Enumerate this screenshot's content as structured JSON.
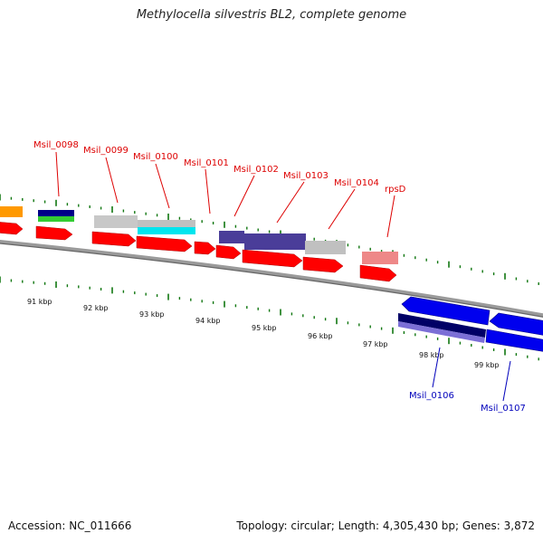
{
  "title": "Methylocella silvestris BL2, complete genome",
  "footer": {
    "accession": "Accession: NC_011666",
    "summary": "Topology: circular; Length: 4,305,430 bp; Genes: 3,872"
  },
  "colors": {
    "backbone": "#888888",
    "forward_cds": "#ff0000",
    "reverse_cds": "#0000ee",
    "label_forward": "#dd0000",
    "label_reverse": "#0000bb",
    "tick": "#117711"
  },
  "scale_labels": [
    "91 kbp",
    "92 kbp",
    "93 kbp",
    "94 kbp",
    "95 kbp",
    "96 kbp",
    "97 kbp",
    "98 kbp",
    "99 kbp"
  ],
  "forward_gene_labels": [
    "Msil_0098",
    "Msil_0099",
    "Msil_0100",
    "Msil_0101",
    "Msil_0102",
    "Msil_0103",
    "Msil_0104",
    "rpsD"
  ],
  "reverse_gene_labels": [
    "Msil_0106",
    "Msil_0107"
  ]
}
